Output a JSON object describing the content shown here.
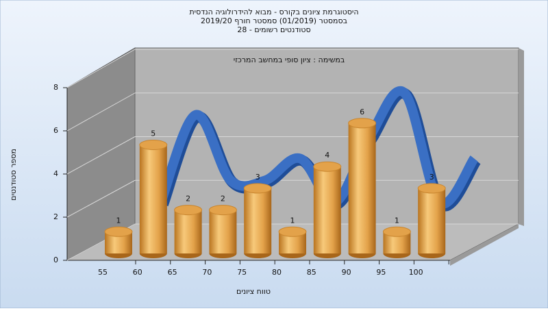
{
  "chart_data": {
    "type": "bar",
    "title": [
      "היסטוגרמת ציונים בקורס - מבוא להידרולוגיה הנדסית",
      "בסמסטר  (01/2019)  סמסטר חורף 2019/20",
      "סטודנטים רשומים - 28"
    ],
    "subtitle": "במשימה : ציון סופי במחשב המרכזי",
    "x_label": "טווח ציונים",
    "y_label": "מספר סטודנטים",
    "categories": [
      "55",
      "60",
      "65",
      "70",
      "75",
      "80",
      "85",
      "90",
      "95",
      "100"
    ],
    "values": [
      1,
      5,
      2,
      2,
      3,
      1,
      4,
      6,
      1,
      3
    ],
    "color": "#e3a24a",
    "line_color": "#3a6fc4",
    "ylim": [
      0,
      8
    ],
    "yticks": [
      0,
      2,
      4,
      6,
      8
    ],
    "grid": true
  }
}
